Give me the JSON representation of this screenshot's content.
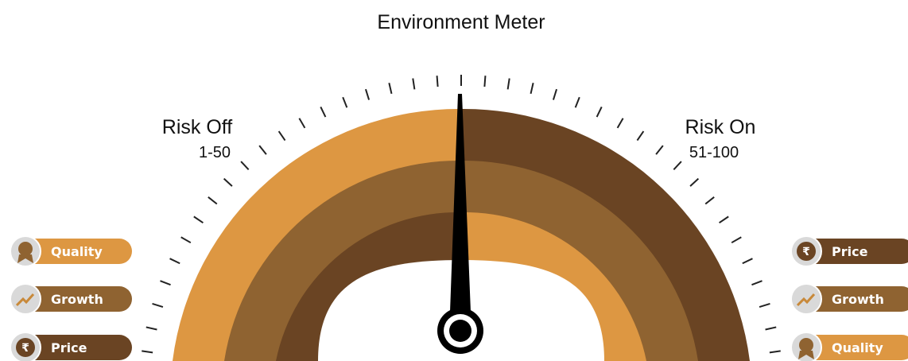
{
  "header": {
    "title": "Environment Meter"
  },
  "risk_off": {
    "label": "Risk Off",
    "range": "1-50"
  },
  "risk_on": {
    "label": "Risk On",
    "range": "51-100"
  },
  "left_pills": [
    {
      "label": "Quality"
    },
    {
      "label": "Growth"
    },
    {
      "label": "Price",
      "symbol": "₹"
    }
  ],
  "right_pills": [
    {
      "label": "Price",
      "symbol": "₹"
    },
    {
      "label": "Growth"
    },
    {
      "label": "Quality"
    }
  ]
}
